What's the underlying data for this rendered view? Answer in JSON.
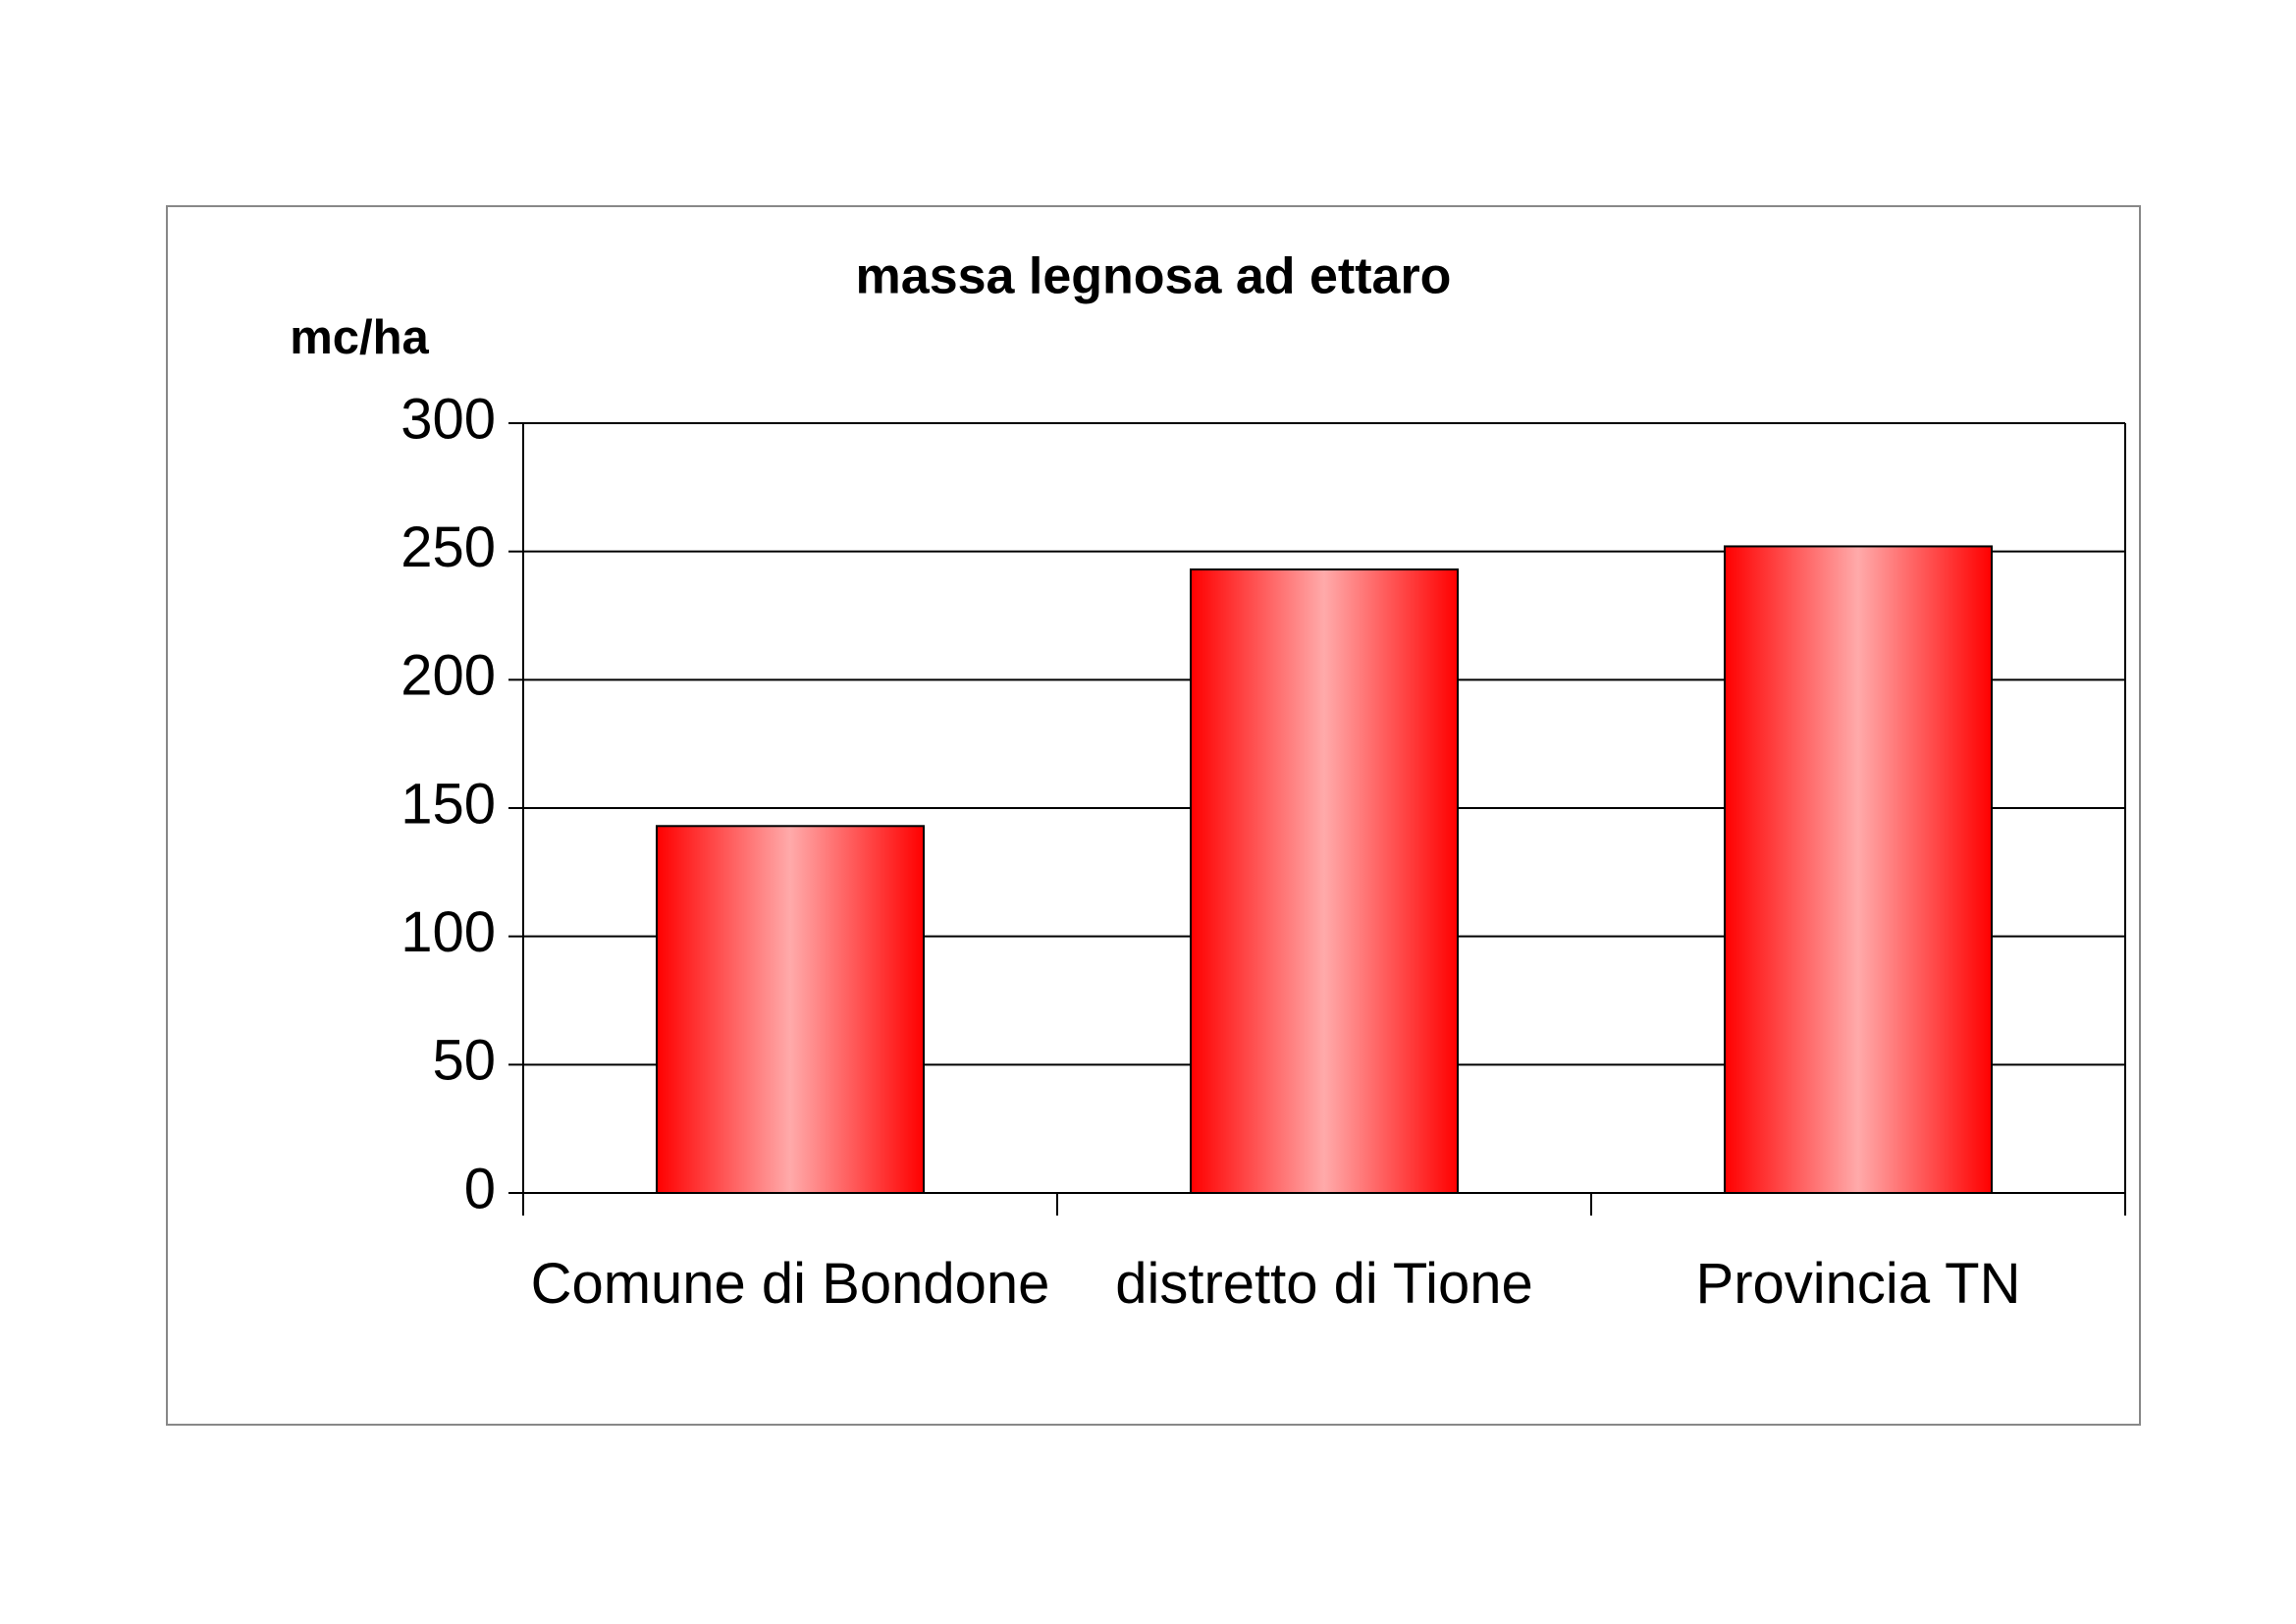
{
  "chart_data": {
    "type": "bar",
    "title": "massa legnosa ad ettaro",
    "y_label": "mc/ha",
    "categories": [
      "Comune di Bondone",
      "distretto di Tione",
      "Provincia TN"
    ],
    "values": [
      143,
      243,
      252
    ],
    "color": "#ff0000",
    "ylim": [
      0,
      300
    ],
    "yticks": [
      0,
      50,
      100,
      150,
      200,
      250,
      300
    ],
    "grid": true
  }
}
